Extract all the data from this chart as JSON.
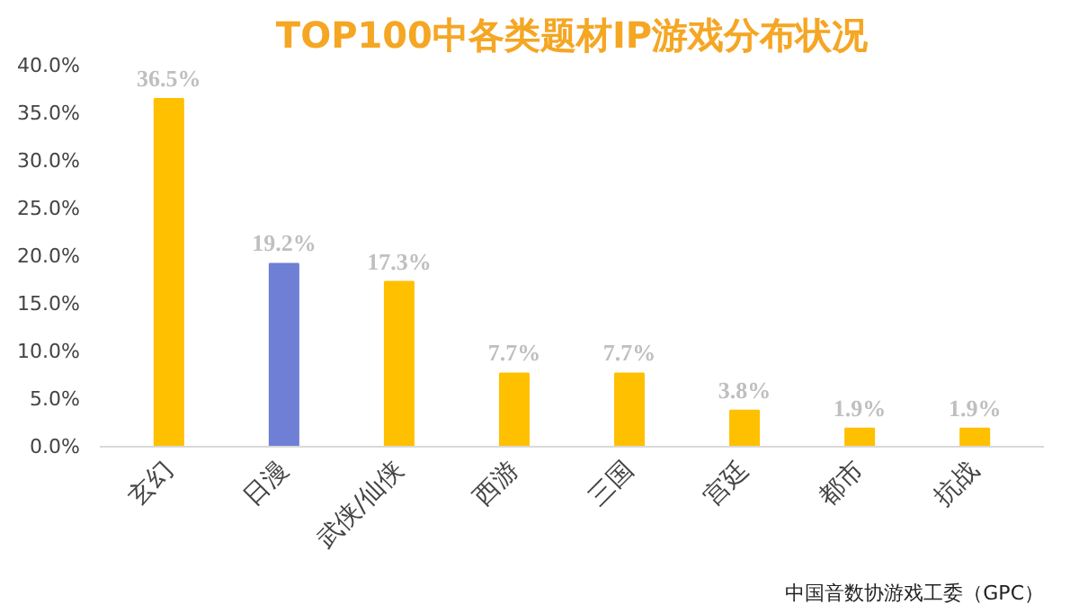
{
  "chart_data": {
    "type": "bar",
    "title": "TOP100中各类题材IP游戏分布状况",
    "categories": [
      "玄幻",
      "日漫",
      "武侠/仙侠",
      "西游",
      "三国",
      "宫廷",
      "都市",
      "抗战"
    ],
    "values": [
      36.5,
      19.2,
      17.3,
      7.7,
      7.7,
      3.8,
      1.9,
      1.9
    ],
    "colors": [
      "#ffc000",
      "#6f7fd6",
      "#ffc000",
      "#ffc000",
      "#ffc000",
      "#ffc000",
      "#ffc000",
      "#ffc000"
    ],
    "value_labels": [
      "36.5%",
      "19.2%",
      "17.3%",
      "7.7%",
      "7.7%",
      "3.8%",
      "1.9%",
      "1.9%"
    ],
    "ylim": [
      0,
      40
    ],
    "yticks": [
      {
        "value": 0,
        "label": "0.0%"
      },
      {
        "value": 5,
        "label": "5.0%"
      },
      {
        "value": 10,
        "label": "10.0%"
      },
      {
        "value": 15,
        "label": "15.0%"
      },
      {
        "value": 20,
        "label": "20.0%"
      },
      {
        "value": 25,
        "label": "25.0%"
      },
      {
        "value": 30,
        "label": "30.0%"
      },
      {
        "value": 35,
        "label": "35.0%"
      },
      {
        "value": 40,
        "label": "40.0%"
      }
    ],
    "grid": false,
    "annotations": [
      "中国音数协游戏工委（GPC）"
    ]
  }
}
